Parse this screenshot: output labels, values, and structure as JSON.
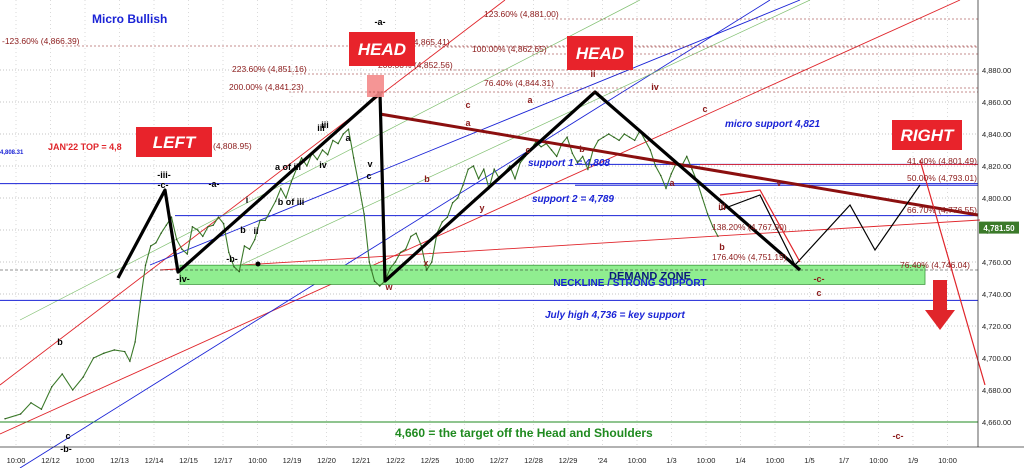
{
  "chart_data": {
    "type": "line",
    "title": "Micro Bullish",
    "ylim": [
      4650,
      4895
    ],
    "y_ticks": [
      4660,
      4680,
      4700,
      4720,
      4740,
      4760,
      4780,
      4800,
      4820,
      4840,
      4860,
      4880
    ],
    "x_tick_labels": [
      "10:00",
      "12/12",
      "10:00",
      "12/13",
      "12/14",
      "12/15",
      "12/17",
      "10:00",
      "12/19",
      "12/20",
      "12/21",
      "12/22",
      "12/25",
      "10:00",
      "12/27",
      "12/28",
      "12/29",
      "'24",
      "10:00",
      "1/3",
      "10:00",
      "1/4",
      "10:00",
      "1/5",
      "1/7",
      "10:00",
      "1/9",
      "10:00"
    ],
    "last_price": "4,781.50",
    "price_series": [
      [
        0,
        4662
      ],
      [
        3,
        4665
      ],
      [
        5,
        4672
      ],
      [
        7,
        4668
      ],
      [
        9,
        4682
      ],
      [
        11,
        4690
      ],
      [
        13,
        4680
      ],
      [
        15,
        4688
      ],
      [
        17,
        4700
      ],
      [
        19,
        4703
      ],
      [
        21,
        4705
      ],
      [
        23,
        4704
      ],
      [
        24,
        4698
      ],
      [
        25,
        4710
      ],
      [
        26,
        4735
      ],
      [
        27,
        4758
      ],
      [
        28,
        4770
      ],
      [
        29,
        4772
      ],
      [
        30,
        4778
      ],
      [
        31,
        4783
      ],
      [
        32,
        4788
      ],
      [
        33,
        4774
      ],
      [
        34,
        4768
      ],
      [
        35,
        4765
      ],
      [
        36,
        4782
      ],
      [
        37,
        4780
      ],
      [
        38,
        4776
      ],
      [
        39,
        4782
      ],
      [
        40,
        4783
      ],
      [
        41,
        4788
      ],
      [
        42,
        4784
      ],
      [
        43,
        4766
      ],
      [
        44,
        4757
      ],
      [
        45,
        4754
      ],
      [
        46,
        4770
      ],
      [
        47,
        4768
      ],
      [
        48,
        4774
      ],
      [
        49,
        4786
      ],
      [
        50,
        4786
      ],
      [
        51,
        4792
      ],
      [
        52,
        4798
      ],
      [
        53,
        4806
      ],
      [
        54,
        4800
      ],
      [
        55,
        4810
      ],
      [
        56,
        4818
      ],
      [
        57,
        4825
      ],
      [
        58,
        4820
      ],
      [
        59,
        4828
      ],
      [
        60,
        4824
      ],
      [
        61,
        4830
      ],
      [
        62,
        4827
      ],
      [
        63,
        4836
      ],
      [
        64,
        4834
      ],
      [
        65,
        4840
      ],
      [
        66,
        4843
      ],
      [
        67,
        4825
      ],
      [
        68,
        4808
      ],
      [
        69,
        4790
      ],
      [
        70,
        4760
      ],
      [
        71,
        4748
      ],
      [
        72,
        4745
      ],
      [
        73,
        4748
      ],
      [
        74,
        4756
      ],
      [
        75,
        4760
      ],
      [
        76,
        4766
      ],
      [
        77,
        4768
      ],
      [
        78,
        4776
      ],
      [
        79,
        4778
      ],
      [
        80,
        4770
      ],
      [
        81,
        4755
      ],
      [
        82,
        4760
      ],
      [
        83,
        4778
      ],
      [
        84,
        4785
      ],
      [
        85,
        4788
      ],
      [
        86,
        4797
      ],
      [
        87,
        4800
      ],
      [
        88,
        4808
      ],
      [
        89,
        4818
      ],
      [
        90,
        4820
      ],
      [
        91,
        4812
      ],
      [
        92,
        4818
      ],
      [
        93,
        4806
      ],
      [
        94,
        4818
      ],
      [
        95,
        4812
      ],
      [
        96,
        4816
      ],
      [
        97,
        4820
      ],
      [
        98,
        4812
      ],
      [
        99,
        4822
      ],
      [
        100,
        4826
      ],
      [
        101,
        4830
      ],
      [
        102,
        4835
      ],
      [
        103,
        4832
      ],
      [
        104,
        4834
      ],
      [
        105,
        4830
      ],
      [
        106,
        4826
      ],
      [
        107,
        4834
      ],
      [
        108,
        4838
      ],
      [
        109,
        4828
      ],
      [
        110,
        4822
      ],
      [
        111,
        4826
      ],
      [
        112,
        4818
      ],
      [
        113,
        4830
      ],
      [
        114,
        4836
      ],
      [
        115,
        4838
      ],
      [
        116,
        4840
      ],
      [
        117,
        4838
      ],
      [
        118,
        4836
      ],
      [
        119,
        4840
      ],
      [
        120,
        4838
      ],
      [
        121,
        4836
      ],
      [
        122,
        4842
      ],
      [
        123,
        4836
      ],
      [
        124,
        4830
      ],
      [
        125,
        4820
      ],
      [
        126,
        4814
      ],
      [
        127,
        4806
      ],
      [
        128,
        4815
      ],
      [
        129,
        4822
      ],
      [
        130,
        4820
      ],
      [
        131,
        4826
      ],
      [
        132,
        4818
      ],
      [
        133,
        4810
      ],
      [
        134,
        4800
      ],
      [
        135,
        4790
      ],
      [
        136,
        4782
      ],
      [
        137,
        4776
      ]
    ],
    "price_x_range": [
      0,
      137
    ],
    "price_timeline": [
      [
        0,
        5
      ],
      [
        137,
        718
      ]
    ],
    "horizontal_levels": [
      {
        "value": 4808.95,
        "color": "#1a23d6",
        "label": "JAN'22 TOP = 4,8",
        "style": "solid"
      },
      {
        "value": 4821,
        "color": "#1a23d6",
        "label": "micro support 4,821",
        "style": "solid",
        "from": 575
      },
      {
        "value": 4808,
        "color": "#1a23d6",
        "label": "support 1 = 4,808",
        "style": "solid",
        "from": 575
      },
      {
        "value": 4789,
        "color": "#1a23d6",
        "label": "support 2 = 4,789",
        "style": "solid",
        "from": 175
      },
      {
        "value": 4736,
        "color": "#1a23d6",
        "label": "July high 4,736 = key support",
        "style": "solid"
      },
      {
        "value": 4660,
        "color": "#1f8a1f",
        "label": "4,660 = the target off the Head and Shoulders",
        "style": "solid"
      },
      {
        "value": 4821,
        "color": "#e0252b",
        "label": "",
        "style": "solid",
        "from": 700
      }
    ],
    "demand_zone": {
      "from": 4746,
      "to": 4758,
      "label": "DEMAND ZONE"
    },
    "neckline_label": "NECKLINE / STRONG SUPPORT",
    "fib_levels": [
      {
        "label": "-123.60% (4,866.39)",
        "value": 4866.39
      },
      {
        "label": "123.60% (4,881.00)",
        "value": 4881.0
      },
      {
        "label": "100.00% (4,865.41)",
        "value": 4865.41
      },
      {
        "label": "100.00% (4,862.65)",
        "value": 4862.65
      },
      {
        "label": "223.60% (4,851.16)",
        "value": 4851.16
      },
      {
        "label": "200.00% (4,852.56)",
        "value": 4852.56
      },
      {
        "label": "200.00% (4,841.23)",
        "value": 4841.23
      },
      {
        "label": "76.40% (4,844.31)",
        "value": 4844.31
      },
      {
        "label": "(4,808.95)",
        "value": 4808.95
      },
      {
        "label": "41.40% (4,801.49)",
        "value": 4801.49
      },
      {
        "label": "50.00% (4,793.01)",
        "value": 4793.01
      },
      {
        "label": "66.70% (4,776.55)",
        "value": 4776.55
      },
      {
        "label": "138.20% (4,767.90)",
        "value": 4767.9
      },
      {
        "label": "176.40% (4,751.19)",
        "value": 4751.19
      },
      {
        "label": "76.40% (4,746.04)",
        "value": 4746.04
      }
    ],
    "pattern_labels": [
      {
        "text": "LEFT"
      },
      {
        "text": "HEAD"
      },
      {
        "text": "HEAD"
      },
      {
        "text": "RIGHT"
      }
    ],
    "wave_labels": [
      "-iii-",
      "-c-",
      "-a-",
      "-iv-",
      "-b-",
      "a of iii",
      "b of iii",
      "iii",
      "iv",
      "v",
      "-a-",
      "w",
      "c",
      "a",
      "b",
      "x",
      "y",
      "ii",
      "iv",
      "v",
      "-c-",
      "c",
      "iii",
      "b",
      "c",
      "-b-",
      "a",
      "b",
      "c",
      "ii",
      "i",
      "iii",
      "a",
      "c",
      "b",
      "a",
      "b",
      "c",
      "-c-",
      "4,808.31"
    ]
  },
  "colors": {
    "head_box": "#e8232b",
    "demand_zone": "#90ee90",
    "blue_lines": "#1a23d6",
    "neckline": "#8b0f0f",
    "price": "#3b7a2a",
    "arrow": "#e0252b"
  }
}
